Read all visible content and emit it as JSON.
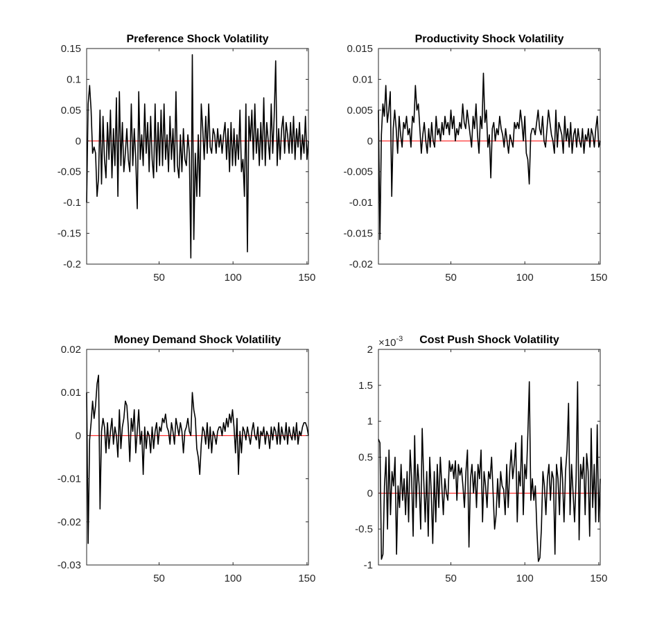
{
  "figure": {
    "background": "#ffffff",
    "line_color": "#000000",
    "zero_line_color": "#ff0000"
  },
  "chart_data": [
    {
      "type": "line",
      "title": "Preference Shock Volatility",
      "xlim": [
        1,
        151
      ],
      "xticks": [
        50,
        100,
        150
      ],
      "xtick_labels": [
        "50",
        "100",
        "150"
      ],
      "ylim": [
        -0.2,
        0.15
      ],
      "yticks": [
        -0.2,
        -0.15,
        -0.1,
        -0.05,
        0,
        0.05,
        0.1,
        0.15
      ],
      "ytick_labels": [
        "-0.2",
        "-0.15",
        "-0.1",
        "-0.05",
        "0",
        "0.05",
        "0.1",
        "0.15"
      ],
      "exponent_label": "",
      "zero_line": true,
      "series": [
        {
          "y": [
            -0.1,
            0.06,
            0.09,
            0.05,
            -0.02,
            -0.01,
            -0.02,
            -0.09,
            -0.06,
            0.05,
            -0.07,
            0.04,
            -0.03,
            -0.06,
            0.03,
            -0.03,
            0.05,
            -0.06,
            0.02,
            -0.04,
            0.07,
            -0.09,
            0.08,
            -0.04,
            0.03,
            -0.05,
            -0.02,
            0.02,
            -0.03,
            -0.05,
            0.06,
            -0.04,
            0.02,
            -0.03,
            -0.11,
            0.08,
            -0.03,
            0.01,
            -0.04,
            0.06,
            -0.02,
            0.03,
            -0.05,
            0.04,
            -0.03,
            -0.06,
            0.06,
            -0.05,
            0.03,
            -0.04,
            0.05,
            -0.04,
            0.06,
            -0.03,
            0.01,
            -0.05,
            0.04,
            -0.03,
            0.02,
            -0.05,
            0.08,
            -0.04,
            -0.06,
            0.01,
            -0.05,
            0.02,
            -0.03,
            -0.04,
            0.01,
            -0.02,
            -0.19,
            0.14,
            -0.16,
            -0.02,
            -0.09,
            0.01,
            -0.09,
            0.06,
            0.02,
            -0.03,
            0.04,
            -0.02,
            0.06,
            -0.01,
            -0.02,
            0.02,
            0.01,
            -0.02,
            0.02,
            -0.01,
            0.01,
            -0.02,
            0.01,
            0.03,
            -0.03,
            0.02,
            -0.05,
            0.03,
            -0.04,
            0.02,
            -0.04,
            0.01,
            -0.03,
            0.05,
            -0.05,
            -0.03,
            -0.09,
            0.06,
            -0.18,
            0.04,
            0.0,
            0.05,
            -0.03,
            0.06,
            -0.02,
            0.02,
            -0.04,
            0.03,
            -0.03,
            0.07,
            -0.04,
            0.03,
            0.0,
            -0.03,
            0.06,
            -0.02,
            0.04,
            0.13,
            -0.04,
            0.02,
            -0.03,
            0.02,
            0.04,
            -0.02,
            0.03,
            0.01,
            -0.02,
            0.03,
            -0.02,
            0.04,
            -0.03,
            0.02,
            -0.01,
            0.03,
            -0.03,
            0.01,
            -0.02,
            0.04,
            -0.03,
            0.0
          ]
        }
      ]
    },
    {
      "type": "line",
      "title": "Productivity Shock Volatility",
      "xlim": [
        1,
        151
      ],
      "xticks": [
        50,
        100,
        150
      ],
      "xtick_labels": [
        "50",
        "100",
        "150"
      ],
      "ylim": [
        -0.02,
        0.015
      ],
      "yticks": [
        -0.02,
        -0.015,
        -0.01,
        -0.005,
        0,
        0.005,
        0.01,
        0.015
      ],
      "ytick_labels": [
        "-0.02",
        "-0.015",
        "-0.01",
        "-0.005",
        "0",
        "0.005",
        "0.01",
        "0.015"
      ],
      "exponent_label": "",
      "zero_line": true,
      "series": [
        {
          "y": [
            0.005,
            -0.016,
            0.001,
            0.006,
            0.004,
            0.009,
            0.003,
            0.005,
            0.008,
            -0.009,
            0.002,
            0.005,
            0.002,
            -0.002,
            0.004,
            0.001,
            -0.001,
            0.003,
            0.002,
            0.004,
            0.001,
            0.002,
            -0.001,
            0.004,
            0.003,
            0.009,
            0.005,
            0.006,
            0.002,
            -0.002,
            0.001,
            0.003,
            0.0,
            -0.002,
            0.002,
            -0.001,
            0.003,
            0.0,
            -0.001,
            0.004,
            0.001,
            0.002,
            0.0,
            0.003,
            0.001,
            0.004,
            0.002,
            0.003,
            0.001,
            0.005,
            0.002,
            0.004,
            0.0,
            0.002,
            0.001,
            0.003,
            0.002,
            0.006,
            0.003,
            0.002,
            0.005,
            0.003,
            0.001,
            -0.001,
            0.004,
            0.002,
            0.006,
            0.001,
            -0.002,
            0.004,
            0.002,
            0.011,
            0.003,
            0.005,
            -0.001,
            0.001,
            -0.006,
            0.002,
            0.003,
            0.0,
            0.002,
            0.001,
            0.004,
            0.002,
            0.001,
            -0.001,
            0.002,
            0.0,
            -0.002,
            0.001,
            0.0,
            -0.001,
            0.003,
            0.002,
            0.003,
            0.002,
            0.005,
            0.003,
            0.0,
            0.004,
            -0.002,
            -0.003,
            -0.007,
            0.001,
            0.002,
            0.002,
            0.001,
            0.003,
            0.005,
            0.002,
            0.001,
            0.004,
            0.0,
            -0.001,
            0.002,
            0.005,
            0.003,
            0.001,
            0.0,
            -0.002,
            0.005,
            -0.001,
            0.003,
            0.002,
            0.001,
            -0.002,
            0.004,
            0.0,
            0.002,
            -0.001,
            0.003,
            -0.002,
            0.001,
            0.002,
            -0.001,
            0.002,
            0.0,
            -0.001,
            0.002,
            -0.002,
            0.001,
            0.0,
            0.002,
            -0.001,
            0.002,
            0.001,
            -0.001,
            0.002,
            0.004,
            -0.001,
            0.0
          ]
        }
      ]
    },
    {
      "type": "line",
      "title": "Money Demand Shock Volatility",
      "xlim": [
        1,
        151
      ],
      "xticks": [
        50,
        100,
        150
      ],
      "xtick_labels": [
        "50",
        "100",
        "150"
      ],
      "ylim": [
        -0.03,
        0.02
      ],
      "yticks": [
        -0.03,
        -0.02,
        -0.01,
        0,
        0.01,
        0.02
      ],
      "ytick_labels": [
        "-0.03",
        "-0.02",
        "-0.01",
        "0",
        "0.01",
        "0.02"
      ],
      "exponent_label": "",
      "zero_line": true,
      "series": [
        {
          "y": [
            0.01,
            -0.025,
            -0.001,
            0.003,
            0.008,
            0.004,
            0.007,
            0.012,
            0.014,
            -0.017,
            0.001,
            0.004,
            0.002,
            -0.004,
            0.003,
            -0.003,
            0.001,
            0.004,
            -0.002,
            0.002,
            0.0,
            -0.005,
            0.006,
            -0.003,
            0.002,
            0.004,
            0.008,
            0.007,
            0.002,
            -0.006,
            0.004,
            0.001,
            0.006,
            -0.004,
            0.001,
            0.006,
            -0.002,
            0.001,
            -0.009,
            0.002,
            -0.003,
            0.001,
            0.0,
            -0.004,
            0.002,
            -0.003,
            0.001,
            0.003,
            -0.002,
            0.002,
            0.001,
            0.004,
            0.003,
            0.005,
            0.002,
            0.001,
            -0.002,
            0.003,
            0.001,
            -0.002,
            0.004,
            0.002,
            0.0,
            0.003,
            0.001,
            -0.004,
            0.001,
            0.002,
            0.004,
            0.001,
            0.0,
            0.01,
            0.006,
            0.004,
            -0.003,
            -0.005,
            -0.009,
            -0.002,
            0.002,
            0.001,
            -0.002,
            0.003,
            -0.003,
            0.002,
            -0.004,
            0.001,
            0.0,
            -0.002,
            0.001,
            0.002,
            0.002,
            0.0,
            0.003,
            0.001,
            0.004,
            0.002,
            0.005,
            0.003,
            0.006,
            0.002,
            -0.004,
            0.004,
            -0.009,
            0.001,
            -0.004,
            0.002,
            0.001,
            -0.001,
            0.002,
            0.0,
            -0.002,
            0.001,
            0.003,
            0.0,
            -0.001,
            0.002,
            -0.003,
            0.001,
            0.0,
            0.002,
            -0.002,
            0.001,
            0.0,
            -0.003,
            0.002,
            -0.001,
            0.002,
            0.001,
            -0.002,
            0.003,
            -0.002,
            0.002,
            0.0,
            -0.001,
            0.003,
            -0.002,
            0.002,
            0.0,
            -0.001,
            0.002,
            -0.001,
            0.003,
            -0.002,
            0.001,
            0.0,
            0.002,
            0.003,
            0.003,
            0.002,
            0.0
          ]
        }
      ]
    },
    {
      "type": "line",
      "title": "Cost Push Shock Volatility",
      "xlim": [
        1,
        151
      ],
      "xticks": [
        50,
        100,
        150
      ],
      "xtick_labels": [
        "50",
        "100",
        "150"
      ],
      "ylim": [
        -1,
        2
      ],
      "yticks": [
        -1,
        -0.5,
        0,
        0.5,
        1,
        1.5,
        2
      ],
      "ytick_labels": [
        "-1",
        "-0.5",
        "0",
        "0.5",
        "1",
        "1.5",
        "2"
      ],
      "exponent_label": "×10",
      "exponent_power": "-3",
      "zero_line": true,
      "series": [
        {
          "y": [
            0.75,
            0.7,
            -0.92,
            -0.85,
            0.1,
            0.5,
            -0.5,
            0.6,
            -0.3,
            0.3,
            0.1,
            0.5,
            -0.85,
            0.1,
            -0.2,
            0.4,
            -0.1,
            0.2,
            -0.3,
            0.3,
            -0.4,
            0.6,
            0.2,
            -0.6,
            0.8,
            -0.2,
            0.4,
            0.1,
            -0.5,
            0.9,
            0.2,
            -0.4,
            0.3,
            -0.6,
            0.5,
            0.0,
            -0.7,
            0.3,
            -0.4,
            0.4,
            -0.2,
            0.5,
            0.1,
            -0.3,
            0.2,
            0.0,
            -0.1,
            0.45,
            0.3,
            0.4,
            0.2,
            0.45,
            -0.1,
            0.4,
            0.25,
            0.35,
            0.1,
            -0.2,
            0.3,
            0.6,
            -0.75,
            0.2,
            0.4,
            0.0,
            0.3,
            -0.2,
            0.4,
            0.2,
            0.6,
            -0.4,
            0.3,
            0.1,
            -0.2,
            0.3,
            0.2,
            0.5,
            0.0,
            -0.5,
            -0.3,
            0.2,
            -0.2,
            0.3,
            0.1,
            0.05,
            -0.3,
            0.4,
            -0.2,
            0.3,
            0.6,
            0.2,
            0.4,
            0.7,
            -0.4,
            0.3,
            0.1,
            0.8,
            -0.3,
            0.4,
            0.2,
            0.8,
            1.55,
            -0.1,
            0.2,
            -0.1,
            0.1,
            -0.5,
            -0.95,
            -0.9,
            -0.5,
            0.3,
            0.1,
            -0.3,
            0.2,
            0.4,
            -0.1,
            0.3,
            0.2,
            -0.85,
            0.4,
            0.2,
            -0.3,
            0.5,
            0.2,
            -0.4,
            0.3,
            0.6,
            1.25,
            -0.3,
            0.4,
            0.0,
            -0.4,
            0.2,
            1.55,
            -0.65,
            0.4,
            0.2,
            0.5,
            -0.3,
            0.55,
            0.3,
            -0.6,
            0.9,
            -0.2,
            0.4,
            -0.4,
            0.95,
            -0.4,
            0.2
          ]
        }
      ]
    }
  ]
}
